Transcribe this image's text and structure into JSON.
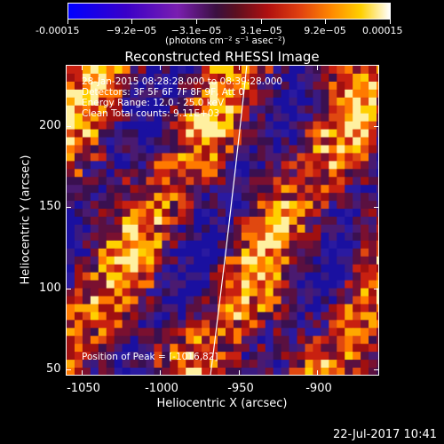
{
  "colorbar": {
    "labels": [
      "-0.00015",
      "−9.2e−05",
      "−3.1e−05",
      "3.1e−05",
      "9.2e−05",
      "0.00015"
    ],
    "units": "(photons cm⁻² s⁻¹ asec⁻²)"
  },
  "title": "Reconstructed RHESSI Image",
  "annotations": {
    "time": "28-Jan-2015 08:28:28.000 to 08:39:28.000",
    "detectors": "Detectors: 3F 5F 6F 7F 8F 9F, Att 0",
    "energy": "Energy Range: 12.0 - 25.0 keV",
    "clean": "Clean     Total counts: 9.11E+03",
    "peak": "Position of Peak = [-1016,82]"
  },
  "axes": {
    "xlabel": "Heliocentric X (arcsec)",
    "ylabel": "Heliocentric Y (arcsec)",
    "xticks": [
      "-1050",
      "-1000",
      "-950",
      "-900"
    ],
    "yticks": [
      "200",
      "150",
      "100",
      "50"
    ]
  },
  "timestamp": "22-Jul-2017 10:41"
}
